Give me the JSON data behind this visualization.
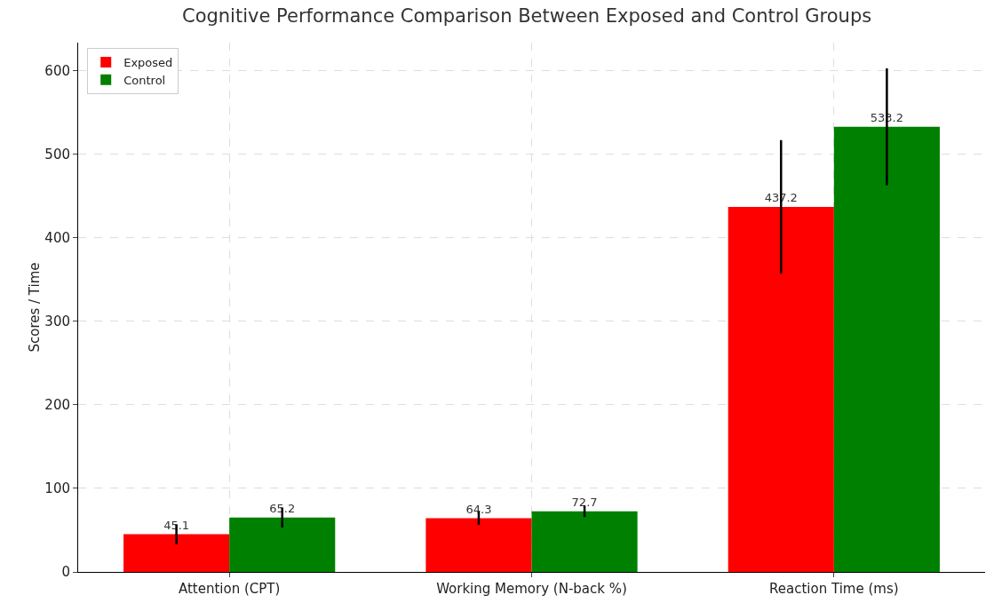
{
  "chart_data": {
    "type": "bar",
    "title": "Cognitive Performance Comparison Between Exposed and Control Groups",
    "ylabel": "Scores / Time",
    "categories": [
      "Attention (CPT)",
      "Working Memory (N-back %)",
      "Reaction Time (ms)"
    ],
    "series": [
      {
        "name": "Exposed",
        "color": "#ff0000",
        "values": [
          45.1,
          64.3,
          437.2
        ],
        "errors": [
          12,
          8,
          80
        ]
      },
      {
        "name": "Control",
        "color": "#008000",
        "values": [
          65.2,
          72.7,
          533.2
        ],
        "errors": [
          12,
          7,
          70
        ]
      }
    ],
    "ylim": [
      0,
      634
    ],
    "yticks": [
      0,
      100,
      200,
      300,
      400,
      500,
      600
    ],
    "grid": true,
    "legend": "top left",
    "data_labels": true
  }
}
